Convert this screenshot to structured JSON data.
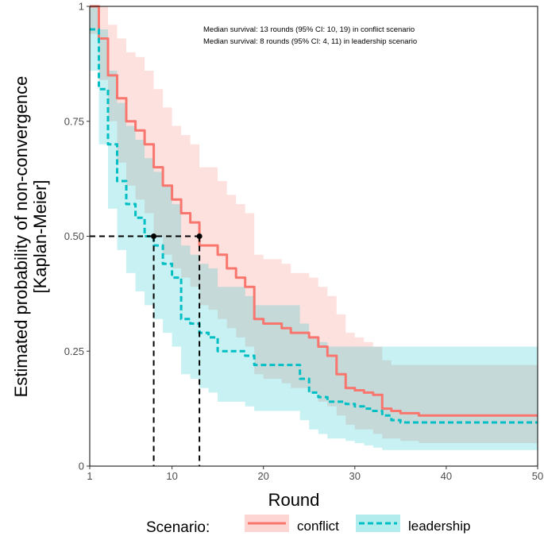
{
  "chart_data": {
    "type": "line",
    "subtype": "kaplan-meier step curves with confidence bands",
    "title": "",
    "xlabel": "Round",
    "ylabel_line1": "Estimated probability of non-convergence",
    "ylabel_line2": "[Kaplan-Meier]",
    "xlim": [
      1,
      50
    ],
    "ylim": [
      0,
      1
    ],
    "x_ticks": [
      1,
      10,
      20,
      30,
      40,
      50
    ],
    "y_ticks": [
      0,
      0.25,
      0.5,
      0.75,
      1
    ],
    "y_tick_labels": [
      "0",
      "0.25",
      "0.50",
      "0.75",
      "1"
    ],
    "grid": false,
    "annotations": [
      "Median survival: 13 rounds (95% CI: 10, 19) in conflict scenario",
      "Median survival:  8 rounds (95% CI:  4, 11) in leadership scenario"
    ],
    "medians": [
      {
        "series": "conflict",
        "x": 13,
        "y": 0.5
      },
      {
        "series": "leadership",
        "x": 8,
        "y": 0.5
      }
    ],
    "legend": {
      "title": "Scenario:",
      "position": "bottom",
      "entries": [
        "conflict",
        "leadership"
      ]
    },
    "series": [
      {
        "name": "conflict",
        "color": "#F8766D",
        "band_color": "#F8766D",
        "line_style": "solid",
        "x": [
          1,
          2,
          3,
          4,
          5,
          6,
          7,
          8,
          9,
          10,
          11,
          12,
          13,
          14,
          15,
          16,
          17,
          18,
          19,
          20,
          21,
          22,
          23,
          24,
          25,
          26,
          27,
          28,
          29,
          30,
          31,
          32,
          33,
          34,
          35,
          36,
          37,
          38,
          40,
          45,
          50
        ],
        "values": [
          1.0,
          0.93,
          0.85,
          0.8,
          0.75,
          0.73,
          0.7,
          0.65,
          0.61,
          0.58,
          0.55,
          0.53,
          0.48,
          0.48,
          0.46,
          0.43,
          0.41,
          0.39,
          0.32,
          0.31,
          0.31,
          0.3,
          0.29,
          0.29,
          0.28,
          0.26,
          0.24,
          0.2,
          0.17,
          0.165,
          0.16,
          0.155,
          0.125,
          0.12,
          0.115,
          0.115,
          0.11,
          0.11,
          0.11,
          0.11,
          0.11
        ],
        "ci_lower": [
          0.94,
          0.84,
          0.75,
          0.66,
          0.61,
          0.58,
          0.55,
          0.5,
          0.46,
          0.43,
          0.41,
          0.39,
          0.35,
          0.34,
          0.32,
          0.3,
          0.28,
          0.26,
          0.2,
          0.19,
          0.19,
          0.18,
          0.17,
          0.17,
          0.16,
          0.14,
          0.13,
          0.11,
          0.09,
          0.08,
          0.08,
          0.07,
          0.06,
          0.06,
          0.055,
          0.055,
          0.05,
          0.05,
          0.05,
          0.05,
          0.05
        ],
        "ci_upper": [
          1.0,
          1.0,
          0.96,
          0.93,
          0.9,
          0.89,
          0.86,
          0.82,
          0.78,
          0.74,
          0.72,
          0.7,
          0.65,
          0.65,
          0.62,
          0.59,
          0.57,
          0.55,
          0.46,
          0.45,
          0.45,
          0.44,
          0.42,
          0.42,
          0.41,
          0.39,
          0.37,
          0.33,
          0.29,
          0.28,
          0.27,
          0.26,
          0.23,
          0.22,
          0.22,
          0.22,
          0.22,
          0.22,
          0.22,
          0.22,
          0.22
        ]
      },
      {
        "name": "leadership",
        "color": "#00BFC4",
        "band_color": "#00BFC4",
        "line_style": "dashed",
        "x": [
          1,
          2,
          3,
          4,
          5,
          6,
          7,
          8,
          9,
          10,
          11,
          12,
          13,
          14,
          15,
          16,
          17,
          18,
          19,
          20,
          21,
          22,
          23,
          24,
          25,
          26,
          27,
          28,
          29,
          30,
          31,
          32,
          33,
          34,
          35,
          36,
          38,
          40,
          45,
          50
        ],
        "values": [
          0.95,
          0.82,
          0.7,
          0.62,
          0.57,
          0.54,
          0.5,
          0.48,
          0.44,
          0.41,
          0.32,
          0.31,
          0.29,
          0.28,
          0.25,
          0.25,
          0.25,
          0.24,
          0.22,
          0.22,
          0.22,
          0.22,
          0.22,
          0.19,
          0.16,
          0.15,
          0.14,
          0.14,
          0.135,
          0.13,
          0.125,
          0.12,
          0.11,
          0.1,
          0.095,
          0.095,
          0.095,
          0.095,
          0.095,
          0.095
        ],
        "ci_lower": [
          0.86,
          0.7,
          0.56,
          0.47,
          0.42,
          0.38,
          0.35,
          0.32,
          0.29,
          0.26,
          0.2,
          0.19,
          0.17,
          0.16,
          0.14,
          0.14,
          0.14,
          0.13,
          0.12,
          0.12,
          0.12,
          0.12,
          0.12,
          0.1,
          0.08,
          0.07,
          0.06,
          0.06,
          0.055,
          0.05,
          0.045,
          0.04,
          0.035,
          0.035,
          0.035,
          0.035,
          0.035,
          0.035,
          0.035,
          0.035
        ],
        "ci_upper": [
          1.0,
          0.95,
          0.86,
          0.79,
          0.74,
          0.71,
          0.67,
          0.64,
          0.61,
          0.57,
          0.48,
          0.46,
          0.44,
          0.43,
          0.39,
          0.39,
          0.39,
          0.37,
          0.35,
          0.35,
          0.35,
          0.35,
          0.35,
          0.31,
          0.28,
          0.27,
          0.26,
          0.26,
          0.26,
          0.26,
          0.26,
          0.26,
          0.26,
          0.26,
          0.26,
          0.26,
          0.26,
          0.26,
          0.26,
          0.26
        ]
      }
    ]
  }
}
